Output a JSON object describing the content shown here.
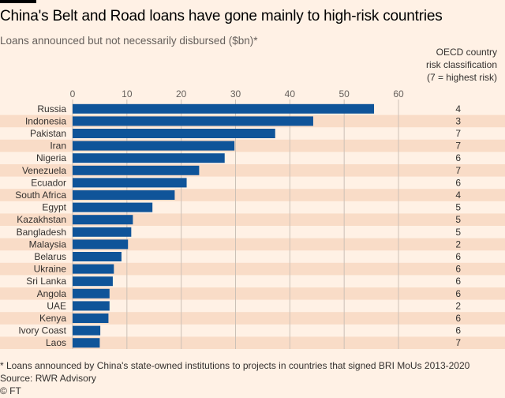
{
  "title": "China's Belt and Road loans have gone mainly to high-risk countries",
  "subtitle": "Loans announced but not necessarily disbursed ($bn)*",
  "risk_header": [
    "OECD country",
    "risk classification",
    "(7 = highest risk)"
  ],
  "footnote": "* Loans announced by China's state-owned institutions to projects in countries that signed BRI MoUs 2013-2020",
  "source": "Source: RWR Advisory",
  "copyright": "© FT",
  "colors": {
    "bar": "#0f5499",
    "band": "#f9dcc7",
    "grid": "#ccc1b7",
    "background": "#fff1e5"
  },
  "chart_data": {
    "type": "bar",
    "orientation": "horizontal",
    "xlim": [
      0,
      60
    ],
    "xticks": [
      0,
      10,
      20,
      30,
      40,
      50,
      60
    ],
    "categories": [
      "Russia",
      "Indonesia",
      "Pakistan",
      "Iran",
      "Nigeria",
      "Venezuela",
      "Ecuador",
      "South Africa",
      "Egypt",
      "Kazakhstan",
      "Bangladesh",
      "Malaysia",
      "Belarus",
      "Ukraine",
      "Sri Lanka",
      "Angola",
      "UAE",
      "Kenya",
      "Ivory Coast",
      "Laos"
    ],
    "values": [
      55.5,
      44.3,
      37.3,
      29.8,
      28,
      23.3,
      21,
      18.8,
      14.7,
      11.1,
      10.8,
      10.2,
      9,
      7.6,
      7.4,
      6.8,
      6.8,
      6.6,
      5.1,
      5
    ],
    "risk": [
      "4",
      "3",
      "7",
      "7",
      "6",
      "7",
      "6",
      "4",
      "5",
      "5",
      "5",
      "2",
      "6",
      "6",
      "6",
      "6",
      "2",
      "6",
      "6",
      "7"
    ]
  }
}
